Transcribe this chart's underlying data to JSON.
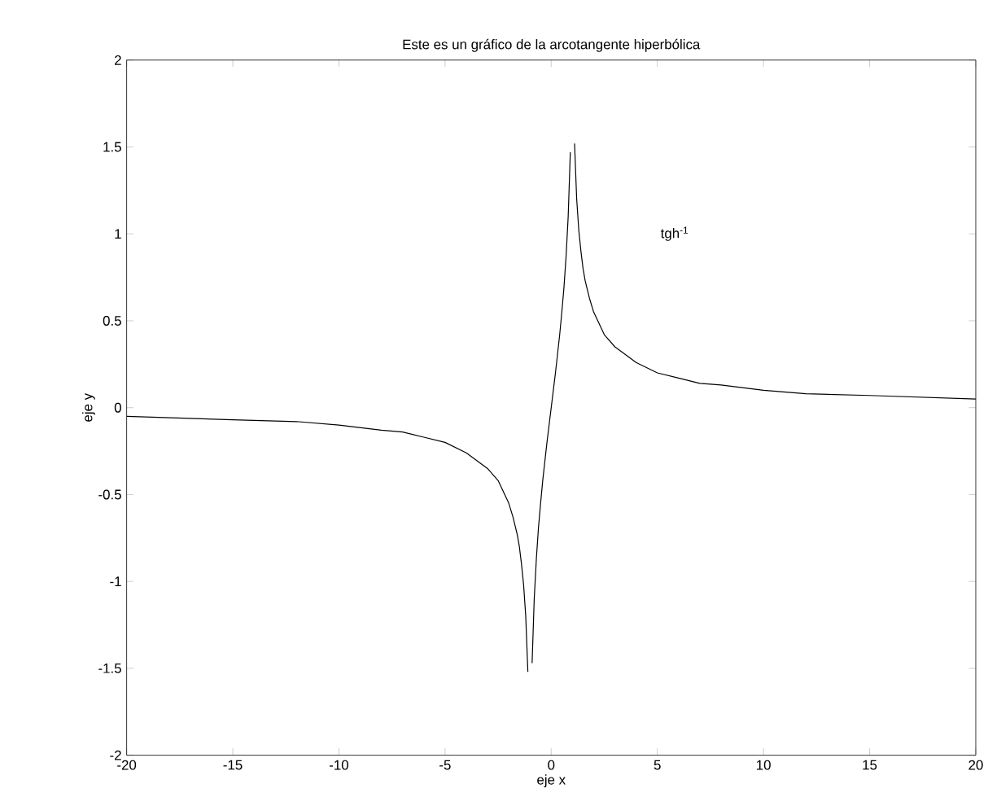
{
  "chart_data": {
    "type": "line",
    "title": "Este es un gráfico de la arcotangente hiperbólica",
    "xlabel": "eje x",
    "ylabel": "eje y",
    "annotations": [
      "tgh$^{-1}$"
    ],
    "xlim": [
      -20,
      20
    ],
    "ylim": [
      -2,
      2
    ],
    "xticks": [
      -20,
      -15,
      -10,
      -5,
      0,
      5,
      10,
      15,
      20
    ],
    "yticks": [
      -2,
      -1.5,
      -1,
      -0.5,
      0,
      0.5,
      1,
      1.5,
      2
    ],
    "grid": false,
    "line_style": "solid",
    "series": [
      {
        "color": "#000000",
        "x": [
          -20,
          -15,
          -12,
          -10,
          -8,
          -7,
          -6,
          -5,
          -4,
          -3,
          -2.5,
          -2,
          -1.8,
          -1.6,
          -1.5,
          -1.4,
          -1.3,
          -1.2,
          -1.1,
          -1,
          -0.9,
          -0.8,
          -0.7,
          -0.6,
          -0.5,
          -0.4,
          -0.3,
          -0.2,
          -0.1,
          0,
          0.1,
          0.2,
          0.3,
          0.4,
          0.5,
          0.6,
          0.7,
          0.8,
          0.9,
          1,
          1.1,
          1.2,
          1.3,
          1.4,
          1.5,
          1.6,
          1.8,
          2,
          2.5,
          3,
          4,
          5,
          6,
          7,
          8,
          10,
          12,
          15,
          20
        ],
        "values": [
          -0.05,
          -0.07,
          -0.08,
          -0.1,
          -0.13,
          -0.14,
          -0.17,
          -0.2,
          -0.26,
          -0.35,
          -0.42,
          -0.55,
          -0.63,
          -0.73,
          -0.8,
          -0.9,
          -1.02,
          -1.2,
          -1.52,
          null,
          -1.47,
          -1.1,
          -0.87,
          -0.69,
          -0.55,
          -0.42,
          -0.31,
          -0.2,
          -0.1,
          0,
          0.1,
          0.2,
          0.31,
          0.42,
          0.55,
          0.69,
          0.87,
          1.1,
          1.47,
          null,
          1.52,
          1.2,
          1.02,
          0.9,
          0.8,
          0.73,
          0.63,
          0.55,
          0.42,
          0.35,
          0.26,
          0.2,
          0.17,
          0.14,
          0.13,
          0.1,
          0.08,
          0.07,
          0.05
        ]
      }
    ]
  }
}
